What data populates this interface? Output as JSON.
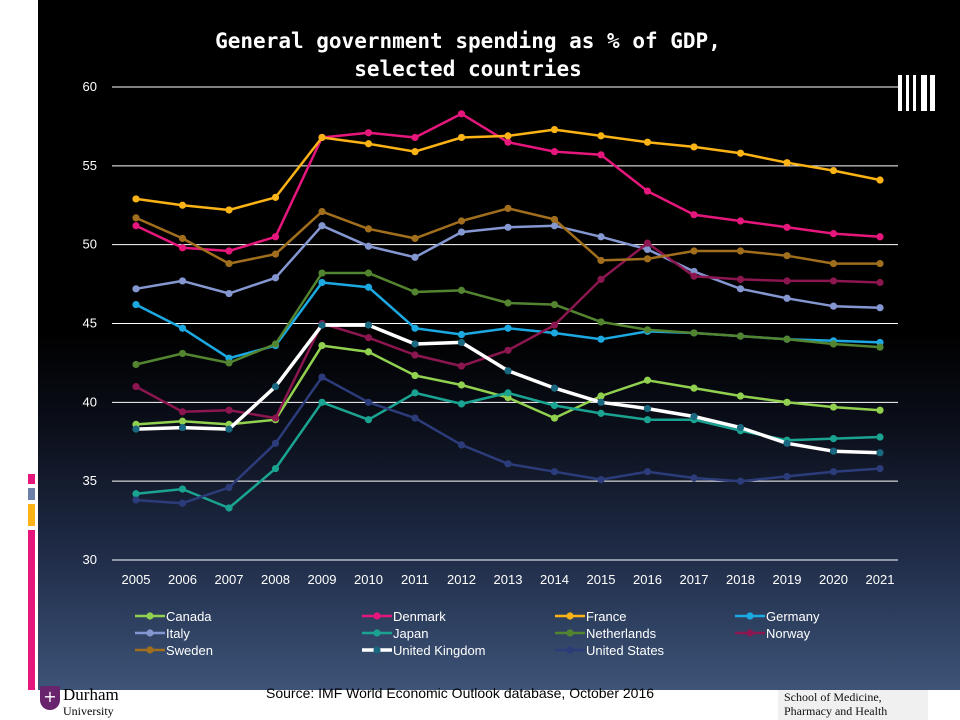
{
  "chart_data": {
    "type": "line",
    "title_line1": "General government spending as % of GDP,",
    "title_line2": "selected countries",
    "x": [
      2005,
      2006,
      2007,
      2008,
      2009,
      2010,
      2011,
      2012,
      2013,
      2014,
      2015,
      2016,
      2017,
      2018,
      2019,
      2020,
      2021
    ],
    "ylim": [
      30,
      60
    ],
    "yticks": [
      30,
      35,
      40,
      45,
      50,
      55,
      60
    ],
    "grid": true,
    "legend_position": "bottom",
    "series": [
      {
        "name": "Canada",
        "color": "#92d050",
        "values": [
          38.6,
          38.8,
          38.6,
          38.9,
          43.6,
          43.2,
          41.7,
          41.1,
          40.3,
          39.0,
          40.4,
          41.4,
          40.9,
          40.4,
          40.0,
          39.7,
          39.5
        ]
      },
      {
        "name": "Denmark",
        "color": "#e6177c",
        "values": [
          51.2,
          49.8,
          49.6,
          50.5,
          56.8,
          57.1,
          56.8,
          58.3,
          56.5,
          55.9,
          55.7,
          53.4,
          51.9,
          51.5,
          51.1,
          50.7,
          50.5
        ]
      },
      {
        "name": "France",
        "color": "#fbb315",
        "values": [
          52.9,
          52.5,
          52.2,
          53.0,
          56.8,
          56.4,
          55.9,
          56.8,
          56.9,
          57.3,
          56.9,
          56.5,
          56.2,
          55.8,
          55.2,
          54.7,
          54.1
        ]
      },
      {
        "name": "Germany",
        "color": "#1ca9e1",
        "values": [
          46.2,
          44.7,
          42.8,
          43.6,
          47.6,
          47.3,
          44.7,
          44.3,
          44.7,
          44.4,
          44.0,
          44.5,
          44.4,
          44.2,
          44.0,
          43.9,
          43.8
        ]
      },
      {
        "name": "Italy",
        "color": "#8497d0",
        "values": [
          47.2,
          47.7,
          46.9,
          47.9,
          51.2,
          49.9,
          49.2,
          50.8,
          51.1,
          51.2,
          50.5,
          49.7,
          48.3,
          47.2,
          46.6,
          46.1,
          46.0
        ]
      },
      {
        "name": "Japan",
        "color": "#1ba392",
        "values": [
          34.2,
          34.5,
          33.3,
          35.8,
          40.0,
          38.9,
          40.6,
          39.9,
          40.6,
          39.8,
          39.3,
          38.9,
          38.9,
          38.2,
          37.6,
          37.7,
          37.8
        ]
      },
      {
        "name": "Netherlands",
        "color": "#53842f",
        "values": [
          42.4,
          43.1,
          42.5,
          43.7,
          48.2,
          48.2,
          47.0,
          47.1,
          46.3,
          46.2,
          45.1,
          44.6,
          44.4,
          44.2,
          44.0,
          43.7,
          43.5
        ]
      },
      {
        "name": "Norway",
        "color": "#8b1650",
        "values": [
          41.0,
          39.4,
          39.5,
          39.0,
          45.0,
          44.1,
          43.0,
          42.3,
          43.3,
          44.9,
          47.8,
          50.1,
          48.0,
          47.8,
          47.7,
          47.7,
          47.6
        ]
      },
      {
        "name": "Sweden",
        "color": "#a06e1c",
        "values": [
          51.7,
          50.4,
          48.8,
          49.4,
          52.1,
          51.0,
          50.4,
          51.5,
          52.3,
          51.6,
          49.0,
          49.1,
          49.6,
          49.6,
          49.3,
          48.8,
          48.8
        ]
      },
      {
        "name": "United Kingdom",
        "color": "#ffffff",
        "marker_color": "#1a6780",
        "values": [
          38.3,
          38.4,
          38.3,
          41.0,
          44.9,
          44.9,
          43.7,
          43.8,
          42.0,
          40.9,
          40.0,
          39.6,
          39.1,
          38.4,
          37.4,
          36.9,
          36.8
        ]
      },
      {
        "name": "United States",
        "color": "#2c3c7a",
        "values": [
          33.8,
          33.6,
          34.6,
          37.4,
          41.6,
          40.0,
          39.0,
          37.3,
          36.1,
          35.6,
          35.1,
          35.6,
          35.2,
          35.0,
          35.3,
          35.6,
          35.8
        ]
      }
    ]
  },
  "footer": {
    "source": "Source: IMF World Economic Outlook database, October 2016",
    "university_logo_text": "Durham",
    "university_logo_sub": "University",
    "school_logo_line1": "School of Medicine,",
    "school_logo_line2": "Pharmacy and Health"
  },
  "decoration": {
    "accent_colors": [
      "#e6177c",
      "#8497d0",
      "#fbb315",
      "#e6177c"
    ]
  }
}
